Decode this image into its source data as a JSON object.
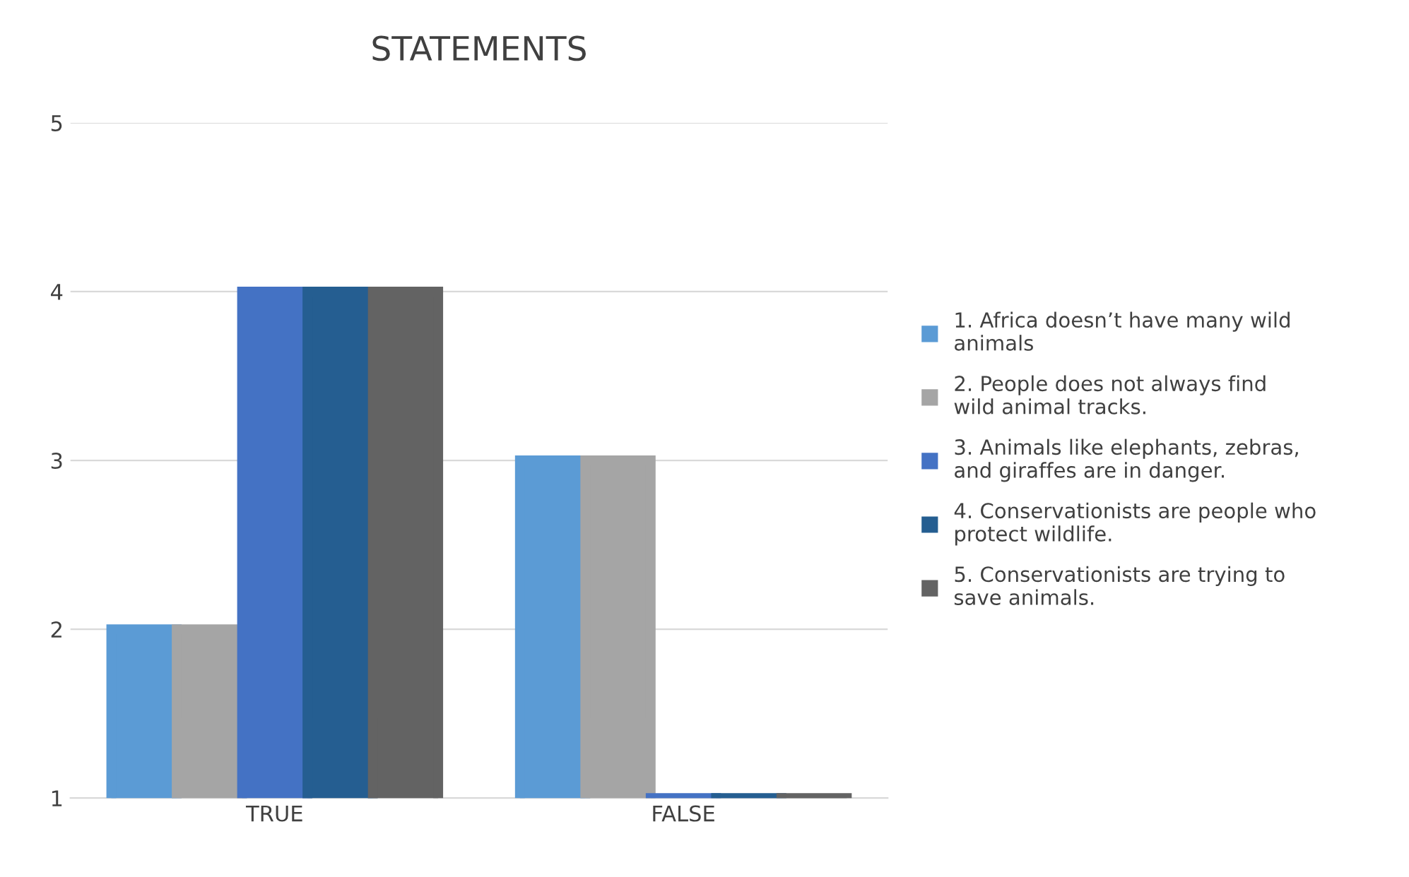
{
  "chart_data": {
    "type": "bar",
    "title": "STATEMENTS",
    "categories": [
      "TRUE",
      "FALSE"
    ],
    "series": [
      {
        "name": "1. Africa doesn’t have many wild animals",
        "color": "#5b9bd5",
        "values": [
          2,
          3
        ]
      },
      {
        "name": "2. People does not always find wild animal tracks.",
        "color": "#a5a5a5",
        "values": [
          2,
          3
        ]
      },
      {
        "name": "3. Animals like elephants, zebras, and giraffes are in danger.",
        "color": "#4472c4",
        "values": [
          4,
          1
        ]
      },
      {
        "name": "4. Conservationists are people who protect wildlife.",
        "color": "#255e91",
        "values": [
          4,
          1
        ]
      },
      {
        "name": "5. Conservationists are trying to save animals.",
        "color": "#636363",
        "values": [
          4,
          1
        ]
      }
    ],
    "ylim": [
      1,
      5
    ],
    "yticks": [
      1,
      2,
      3,
      4,
      5
    ],
    "grid": "y",
    "legend": "right"
  }
}
